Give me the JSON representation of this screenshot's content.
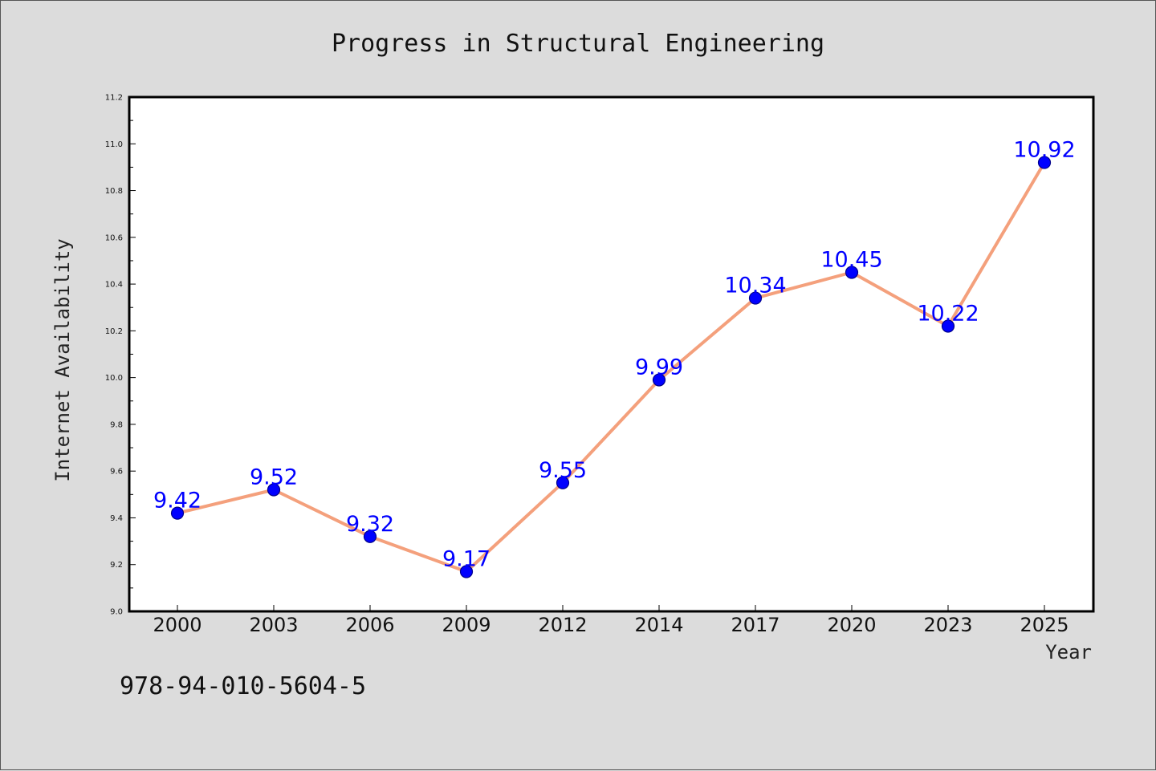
{
  "chart_data": {
    "type": "line",
    "title": "Progress in Structural Engineering",
    "xlabel": "Year",
    "ylabel": "Internet Availability",
    "categories": [
      "2000",
      "2003",
      "2006",
      "2009",
      "2012",
      "2014",
      "2017",
      "2020",
      "2023",
      "2025"
    ],
    "series": [
      {
        "values": [
          9.42,
          9.52,
          9.32,
          9.17,
          9.55,
          9.99,
          10.34,
          10.45,
          10.22,
          10.92
        ]
      }
    ],
    "data_labels": [
      "9.42",
      "9.52",
      "9.32",
      "9.17",
      "9.55",
      "9.99",
      "10.34",
      "10.45",
      "10.22",
      "10.92"
    ],
    "ylim": [
      9.0,
      11.2
    ],
    "yticks": [
      "9.0",
      "9.2",
      "9.4",
      "9.6",
      "9.8",
      "10.0",
      "10.2",
      "10.4",
      "10.6",
      "10.8",
      "11.0",
      "11.2"
    ],
    "grid": false,
    "legend": "none",
    "colors": {
      "line": "#f4a07c",
      "marker": "#0000ff",
      "label": "#0000ff",
      "background": "#dcdcdc",
      "plot_background": "#ffffff"
    }
  },
  "footer": {
    "isbn": "978-94-010-5604-5"
  }
}
